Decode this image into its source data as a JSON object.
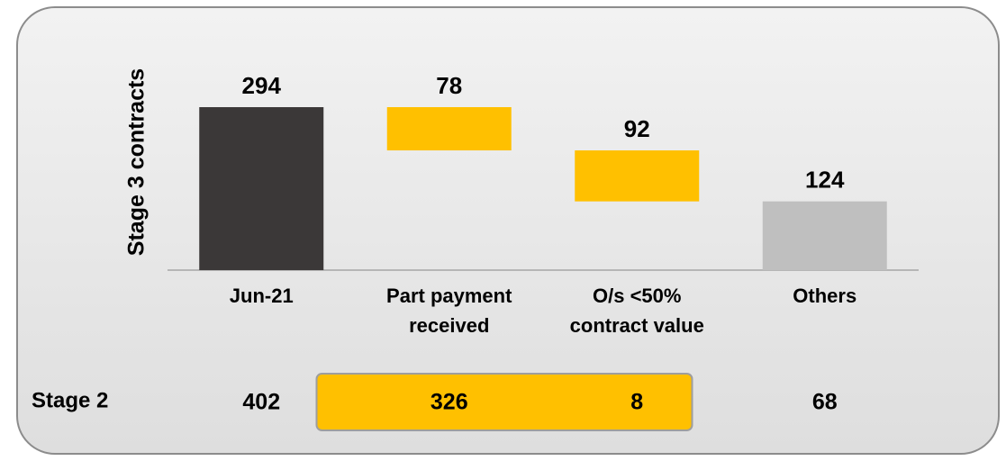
{
  "chart_data": {
    "type": "waterfall",
    "ylabel": "Stage 3 contracts",
    "categories": [
      [
        "Jun-21"
      ],
      [
        "Part payment",
        "received"
      ],
      [
        "O/s <50%",
        "contract value"
      ],
      [
        "Others"
      ]
    ],
    "values": [
      294,
      78,
      92,
      124
    ],
    "measures": [
      "total",
      "decrease",
      "decrease",
      "total"
    ],
    "colors": [
      "#3b3838",
      "#ffc000",
      "#ffc000",
      "#bfbfbf"
    ],
    "ylim": [
      0,
      320
    ],
    "stage2": {
      "label": "Stage 2",
      "values": [
        402,
        326,
        8,
        68
      ],
      "highlight": [
        1,
        2
      ],
      "highlight_color": "#ffc000"
    }
  }
}
